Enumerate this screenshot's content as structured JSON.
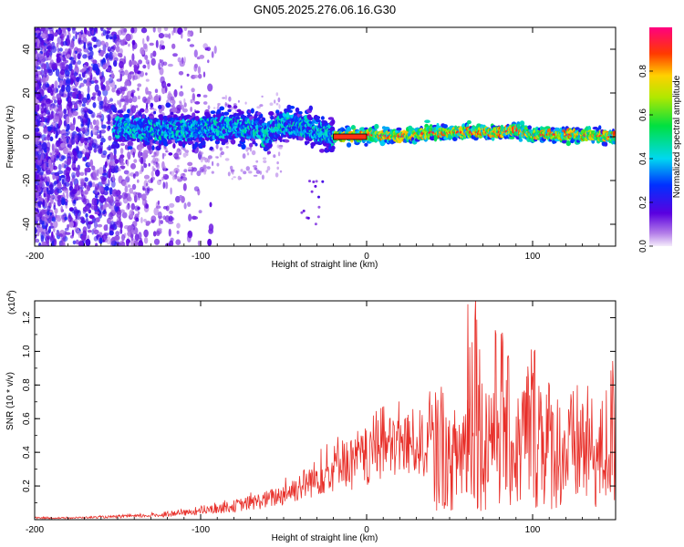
{
  "figure_title": "GN05.2025.276.06.16.G30",
  "colorbar": {
    "label": "Normalized spectral amplitude",
    "ticks": [
      "0.0",
      "0.2",
      "0.4",
      "0.6",
      "0.8"
    ],
    "tick_values": [
      0.0,
      0.2,
      0.4,
      0.6,
      0.8
    ]
  },
  "chart_data": [
    {
      "type": "heatmap",
      "title": "",
      "xlabel": "Height of straight line (km)",
      "ylabel": "Frequency (Hz)",
      "xlim": [
        -200,
        150
      ],
      "ylim": [
        -50,
        50
      ],
      "x_ticks": [
        -200,
        -100,
        0,
        100
      ],
      "x_tick_labels": [
        "-200",
        "-100",
        "0",
        "100"
      ],
      "y_ticks": [
        -40,
        -20,
        0,
        20,
        40
      ],
      "y_tick_labels": [
        "-40",
        "-20",
        "0",
        "20",
        "40"
      ],
      "colormap": "rainbow",
      "value_range": [
        0,
        1
      ],
      "ridge": {
        "x": [
          -150,
          -130,
          -110,
          -90,
          -80,
          -70,
          -60,
          -50,
          -40,
          -30,
          -20,
          0,
          20,
          40,
          60,
          80,
          90,
          100,
          120,
          150
        ],
        "freq": [
          4,
          3,
          3,
          4,
          5,
          4,
          1,
          6,
          5,
          3,
          0,
          1,
          0,
          2,
          2,
          2,
          3,
          1,
          1,
          0
        ]
      }
    },
    {
      "type": "line",
      "title": "",
      "xlabel": "Height of straight line (km)",
      "ylabel": "SNR (10 * v/v)",
      "y_multiplier_label": "(x10^4)",
      "xlim": [
        -200,
        150
      ],
      "ylim": [
        0,
        1.3
      ],
      "x_ticks": [
        -200,
        -100,
        0,
        100
      ],
      "x_tick_labels": [
        "-200",
        "-100",
        "0",
        "100"
      ],
      "y_ticks": [
        0.2,
        0.4,
        0.6,
        0.8,
        1.0,
        1.2
      ],
      "y_tick_labels": [
        "0.2",
        "0.4",
        "0.6",
        "0.8",
        "1.0",
        "1.2"
      ],
      "color": "#e8302a",
      "series": [
        {
          "x": [
            -200,
            -180,
            -160,
            -140,
            -120,
            -100,
            -80,
            -60,
            -50,
            -40,
            -30,
            -20,
            -15,
            -10,
            -5,
            0,
            5,
            10,
            20,
            30,
            35,
            40,
            45,
            50,
            60,
            65,
            70,
            80,
            90,
            100,
            110,
            120,
            130,
            140,
            150
          ],
          "values": [
            0.01,
            0.01,
            0.015,
            0.02,
            0.03,
            0.05,
            0.08,
            0.12,
            0.15,
            0.2,
            0.25,
            0.3,
            0.4,
            0.28,
            0.38,
            0.33,
            0.4,
            0.42,
            0.44,
            0.46,
            0.44,
            0.5,
            0.6,
            0.4,
            0.6,
            1.28,
            0.55,
            0.9,
            0.5,
            0.8,
            0.6,
            0.5,
            0.6,
            0.45,
            0.75
          ]
        }
      ]
    }
  ]
}
